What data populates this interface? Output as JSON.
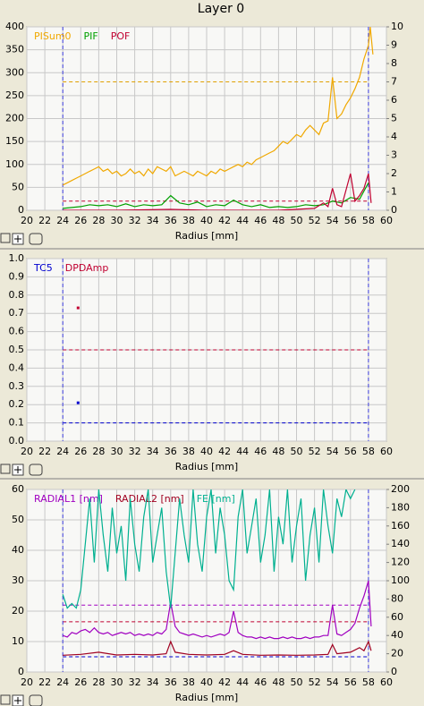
{
  "title": "Layer 0",
  "chart_data": [
    {
      "type": "line",
      "x_label": "Radius [mm]",
      "xlim": [
        20,
        60
      ],
      "xticks": [
        20,
        22,
        24,
        26,
        28,
        30,
        32,
        34,
        36,
        38,
        40,
        42,
        44,
        46,
        48,
        50,
        52,
        54,
        56,
        58,
        60
      ],
      "ylim": [
        0,
        400
      ],
      "yticks": [
        0,
        50,
        100,
        150,
        200,
        250,
        300,
        350,
        400
      ],
      "y2lim": [
        0,
        10
      ],
      "y2ticks": [
        0,
        1,
        2,
        3,
        4,
        5,
        6,
        7,
        8,
        9,
        10
      ],
      "grid": true,
      "vlines": [
        24,
        58
      ],
      "thresholds": [
        {
          "value": 280,
          "color": "#e0a000"
        },
        {
          "value": 20,
          "color": "#c00030"
        }
      ],
      "series": [
        {
          "name": "PISum0",
          "color": "#f0a800",
          "x": [
            24,
            24.5,
            25,
            25.5,
            26,
            26.5,
            27,
            27.5,
            28,
            28.5,
            29,
            29.5,
            30,
            30.5,
            31,
            31.5,
            32,
            32.5,
            33,
            33.5,
            34,
            34.5,
            35,
            35.5,
            36,
            36.5,
            37,
            37.5,
            38,
            38.5,
            39,
            39.5,
            40,
            40.5,
            41,
            41.5,
            42,
            42.5,
            43,
            43.5,
            44,
            44.5,
            45,
            45.5,
            46,
            46.5,
            47,
            47.5,
            48,
            48.5,
            49,
            49.5,
            50,
            50.5,
            51,
            51.5,
            52,
            52.5,
            53,
            53.5,
            54,
            54.5,
            55,
            55.5,
            56,
            56.5,
            57,
            57.5,
            58,
            58.2,
            58.5
          ],
          "values": [
            55,
            60,
            65,
            70,
            75,
            80,
            85,
            90,
            95,
            85,
            90,
            80,
            85,
            75,
            80,
            90,
            80,
            85,
            75,
            90,
            80,
            95,
            90,
            85,
            95,
            75,
            80,
            85,
            80,
            75,
            85,
            80,
            75,
            85,
            80,
            90,
            85,
            90,
            95,
            100,
            95,
            105,
            100,
            110,
            115,
            120,
            125,
            130,
            140,
            150,
            145,
            155,
            165,
            160,
            175,
            185,
            175,
            165,
            190,
            195,
            290,
            200,
            210,
            230,
            245,
            265,
            290,
            330,
            360,
            400,
            340
          ]
        },
        {
          "name": "PIF",
          "color": "#00a000",
          "axis": "y2",
          "x": [
            24,
            25,
            26,
            27,
            28,
            29,
            30,
            31,
            32,
            33,
            34,
            35,
            36,
            37,
            38,
            39,
            40,
            41,
            42,
            43,
            44,
            45,
            46,
            47,
            48,
            49,
            50,
            51,
            52,
            53,
            54,
            55,
            56,
            57,
            58
          ],
          "values": [
            0.1,
            0.15,
            0.2,
            0.3,
            0.25,
            0.3,
            0.2,
            0.35,
            0.2,
            0.3,
            0.25,
            0.3,
            0.8,
            0.4,
            0.3,
            0.45,
            0.2,
            0.3,
            0.25,
            0.55,
            0.3,
            0.2,
            0.3,
            0.15,
            0.2,
            0.15,
            0.2,
            0.3,
            0.25,
            0.3,
            0.5,
            0.4,
            0.7,
            0.6,
            1.5
          ]
        },
        {
          "name": "POF",
          "color": "#c00030",
          "axis": "y2",
          "x": [
            24,
            30,
            36,
            40,
            44,
            48,
            52,
            53,
            53.5,
            54,
            54.5,
            55,
            56,
            56.5,
            57,
            57.5,
            58,
            58.3
          ],
          "values": [
            0,
            0,
            0.05,
            0,
            0,
            0,
            0.1,
            0.4,
            0.2,
            1.2,
            0.3,
            0.2,
            2,
            0.5,
            0.8,
            1.2,
            2,
            0.4
          ]
        }
      ]
    },
    {
      "type": "scatter",
      "x_label": "Radius [mm]",
      "xlim": [
        20,
        60
      ],
      "xticks": [
        20,
        22,
        24,
        26,
        28,
        30,
        32,
        34,
        36,
        38,
        40,
        42,
        44,
        46,
        48,
        50,
        52,
        54,
        56,
        58,
        60
      ],
      "ylim": [
        0,
        1
      ],
      "yticks": [
        {
          "value": 0,
          "label": "0.0"
        },
        0.1,
        0.2,
        0.3,
        0.4,
        0.5,
        0.6,
        0.7,
        0.8,
        0.9,
        {
          "value": 1,
          "label": "1.0"
        }
      ],
      "grid": true,
      "vlines": [
        24,
        58
      ],
      "thresholds": [
        {
          "value": 0.5,
          "color": "#c00030"
        },
        {
          "value": 0.1,
          "color": "#0000d0"
        }
      ],
      "series": [
        {
          "name": "TC5",
          "color": "#0000d0",
          "x": [
            25.7
          ],
          "values": [
            0.21
          ]
        },
        {
          "name": "DPDAmp",
          "color": "#c00030",
          "x": [
            25.7
          ],
          "values": [
            0.73
          ]
        }
      ]
    },
    {
      "type": "line",
      "x_label": "Radius [mm]",
      "xlim": [
        20,
        60
      ],
      "xticks": [
        20,
        22,
        24,
        26,
        28,
        30,
        32,
        34,
        36,
        38,
        40,
        42,
        44,
        46,
        48,
        50,
        52,
        54,
        56,
        58,
        60
      ],
      "ylim": [
        0,
        60
      ],
      "yticks": [
        0,
        10,
        20,
        30,
        40,
        50,
        60
      ],
      "y2lim": [
        0,
        200
      ],
      "y2ticks": [
        0,
        20,
        40,
        60,
        80,
        100,
        120,
        140,
        160,
        180,
        200
      ],
      "grid": true,
      "vlines": [
        24,
        58
      ],
      "thresholds": [
        {
          "value": 22,
          "color": "#a000c0"
        },
        {
          "value": 16.5,
          "color": "#c00030"
        },
        {
          "value": 5,
          "color": "#0000d0"
        }
      ],
      "series": [
        {
          "name": "RADIAL1 [nm]",
          "color": "#a000c0",
          "x": [
            24,
            24.5,
            25,
            25.5,
            26,
            26.5,
            27,
            27.5,
            28,
            28.5,
            29,
            29.5,
            30,
            30.5,
            31,
            31.5,
            32,
            32.5,
            33,
            33.5,
            34,
            34.5,
            35,
            35.5,
            36,
            36.5,
            37,
            37.5,
            38,
            38.5,
            39,
            39.5,
            40,
            40.5,
            41,
            41.5,
            42,
            42.5,
            43,
            43.5,
            44,
            44.5,
            45,
            45.5,
            46,
            46.5,
            47,
            47.5,
            48,
            48.5,
            49,
            49.5,
            50,
            50.5,
            51,
            51.5,
            52,
            52.5,
            53,
            53.5,
            54,
            54.5,
            55,
            55.5,
            56,
            56.5,
            57,
            57.5,
            58,
            58.3
          ],
          "values": [
            12,
            11.5,
            13,
            12.5,
            13.5,
            14,
            13,
            14.5,
            13,
            12.5,
            13,
            12,
            12.5,
            13,
            12.5,
            13,
            12,
            12.5,
            12,
            12.5,
            12,
            13,
            12.5,
            14,
            23,
            15,
            13,
            12.5,
            12,
            12.5,
            12,
            11.5,
            12,
            11.5,
            12,
            12.5,
            12,
            13,
            20,
            13,
            12,
            11.5,
            11.5,
            11,
            11.5,
            11,
            11.5,
            11,
            11,
            11.5,
            11,
            11.5,
            11,
            11,
            11.5,
            11,
            11.5,
            11.5,
            12,
            12,
            22,
            12.5,
            12,
            13,
            14,
            16,
            21,
            25,
            30,
            15
          ]
        },
        {
          "name": "RADIAL2 [nm]",
          "color": "#a00020",
          "x": [
            24,
            26,
            28,
            30,
            32,
            34,
            35.5,
            36,
            36.5,
            38,
            40,
            42,
            43,
            44,
            46,
            48,
            50,
            52,
            53.5,
            54,
            54.5,
            56,
            57,
            57.5,
            58,
            58.3
          ],
          "values": [
            5.5,
            5.8,
            6.5,
            5.6,
            5.8,
            5.6,
            6,
            10,
            6.5,
            5.8,
            5.6,
            5.8,
            7,
            5.8,
            5.5,
            5.6,
            5.5,
            5.6,
            5.8,
            9,
            6,
            6.5,
            8,
            7,
            10,
            7
          ]
        },
        {
          "name": "FE [nm]",
          "color": "#00b090",
          "axis": "y2",
          "x": [
            24,
            24.5,
            25,
            25.5,
            26,
            26.5,
            27,
            27.5,
            28,
            28.5,
            29,
            29.5,
            30,
            30.5,
            31,
            31.5,
            32,
            32.5,
            33,
            33.5,
            34,
            34.5,
            35,
            35.5,
            36,
            36.5,
            37,
            37.5,
            38,
            38.5,
            39,
            39.5,
            40,
            40.5,
            41,
            41.5,
            42,
            42.5,
            43,
            43.5,
            44,
            44.5,
            45,
            45.5,
            46,
            46.5,
            47,
            47.5,
            48,
            48.5,
            49,
            49.5,
            50,
            50.5,
            51,
            51.5,
            52,
            52.5,
            53,
            53.5,
            54,
            54.5,
            55,
            55.5,
            56,
            56.5
          ],
          "values": [
            85,
            70,
            75,
            70,
            90,
            140,
            190,
            120,
            200,
            150,
            110,
            180,
            130,
            160,
            100,
            190,
            140,
            110,
            170,
            200,
            120,
            150,
            180,
            110,
            70,
            130,
            190,
            150,
            120,
            200,
            140,
            110,
            170,
            200,
            130,
            180,
            150,
            100,
            90,
            170,
            200,
            130,
            160,
            190,
            120,
            150,
            200,
            110,
            170,
            140,
            200,
            120,
            160,
            190,
            100,
            150,
            180,
            120,
            200,
            160,
            130,
            190,
            170,
            200,
            190,
            200
          ]
        }
      ]
    }
  ]
}
